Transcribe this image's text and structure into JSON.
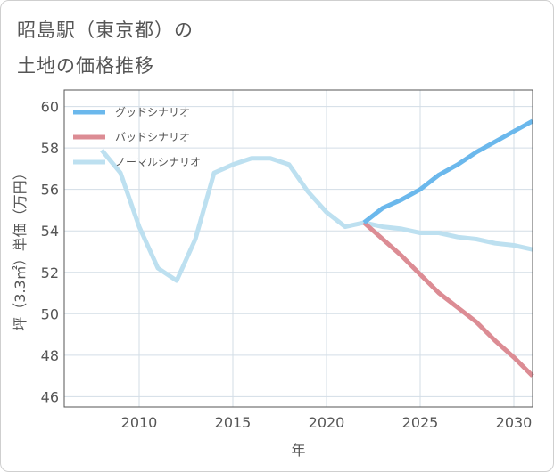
{
  "title_line1": "昭島駅（東京都）の",
  "title_line2": "土地の価格推移",
  "chart_data": {
    "type": "line",
    "title": "昭島駅（東京都）の土地の価格推移",
    "xlabel": "年",
    "ylabel": "坪（3.3㎡）単価（万円）",
    "xlim": [
      2006,
      2031
    ],
    "ylim": [
      45.5,
      60.8
    ],
    "xticks": [
      2010,
      2015,
      2020,
      2025,
      2030
    ],
    "yticks": [
      46,
      48,
      50,
      52,
      54,
      56,
      58,
      60
    ],
    "grid": true,
    "legend_position": "top-left",
    "series": [
      {
        "name": "グッドシナリオ",
        "color": "#6bb8ec",
        "x": [
          2022,
          2023,
          2024,
          2025,
          2026,
          2027,
          2028,
          2029,
          2030,
          2031
        ],
        "values": [
          54.4,
          55.1,
          55.5,
          56.0,
          56.7,
          57.2,
          57.8,
          58.3,
          58.8,
          59.3
        ]
      },
      {
        "name": "バッドシナリオ",
        "color": "#dc8c94",
        "x": [
          2022,
          2023,
          2024,
          2025,
          2026,
          2027,
          2028,
          2029,
          2030,
          2031
        ],
        "values": [
          54.4,
          53.6,
          52.8,
          51.9,
          51.0,
          50.3,
          49.6,
          48.7,
          47.9,
          47.0
        ]
      },
      {
        "name": "ノーマルシナリオ",
        "color": "#bde0f0",
        "x": [
          2008,
          2009,
          2010,
          2011,
          2012,
          2013,
          2014,
          2015,
          2016,
          2017,
          2018,
          2019,
          2020,
          2021,
          2022,
          2023,
          2024,
          2025,
          2026,
          2027,
          2028,
          2029,
          2030,
          2031
        ],
        "values": [
          57.9,
          56.8,
          54.2,
          52.2,
          51.6,
          53.6,
          56.8,
          57.2,
          57.5,
          57.5,
          57.2,
          55.9,
          54.9,
          54.2,
          54.4,
          54.2,
          54.1,
          53.9,
          53.9,
          53.7,
          53.6,
          53.4,
          53.3,
          53.1
        ]
      }
    ]
  }
}
